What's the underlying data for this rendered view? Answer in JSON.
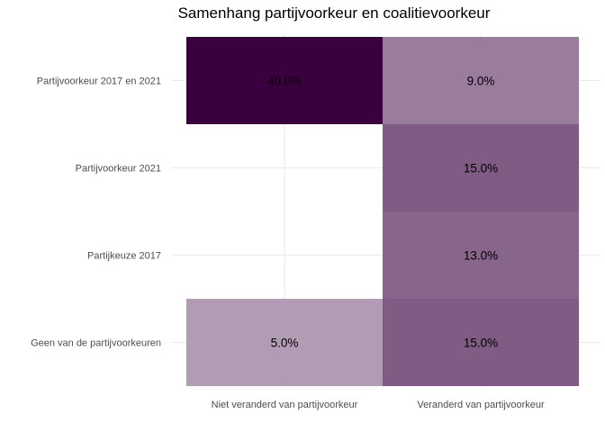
{
  "chart_data": {
    "type": "heatmap",
    "title": "Samenhang partijvoorkeur en coalitievoorkeur",
    "xlabel": "",
    "ylabel": "",
    "x_categories": [
      "Niet veranderd van partijvoorkeur",
      "Veranderd van partijvoorkeur"
    ],
    "y_categories": [
      "Partijvoorkeur 2017 en 2021",
      "Partijvoorkeur 2021",
      "Partijkeuze 2017",
      "Geen van de partijvoorkeuren"
    ],
    "cells": [
      {
        "x": "Niet veranderd van partijvoorkeur",
        "y": "Partijvoorkeur 2017 en 2021",
        "value": 40.0,
        "label": "40.0%"
      },
      {
        "x": "Veranderd van partijvoorkeur",
        "y": "Partijvoorkeur 2017 en 2021",
        "value": 9.0,
        "label": "9.0%"
      },
      {
        "x": "Veranderd van partijvoorkeur",
        "y": "Partijvoorkeur 2021",
        "value": 15.0,
        "label": "15.0%"
      },
      {
        "x": "Veranderd van partijvoorkeur",
        "y": "Partijkeuze 2017",
        "value": 13.0,
        "label": "13.0%"
      },
      {
        "x": "Niet veranderd van partijvoorkeur",
        "y": "Geen van de partijvoorkeuren",
        "value": 5.0,
        "label": "5.0%"
      },
      {
        "x": "Veranderd van partijvoorkeur",
        "y": "Geen van de partijvoorkeuren",
        "value": 15.0,
        "label": "15.0%"
      }
    ],
    "color_low": "#ffffff",
    "color_high": "#3a003f",
    "value_range": [
      0,
      40
    ],
    "grid": true,
    "legend": "none"
  }
}
